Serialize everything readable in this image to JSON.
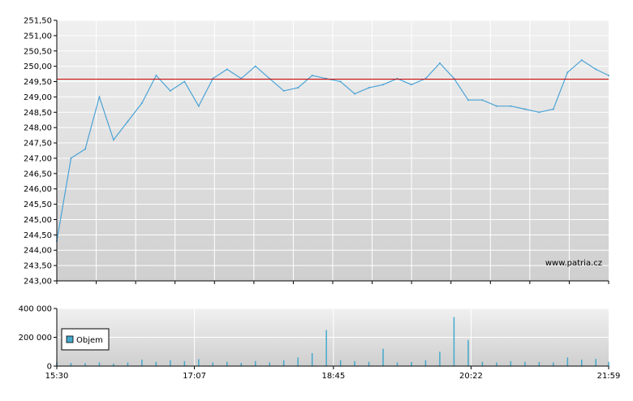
{
  "watermark": "www.patria.cz",
  "colors": {
    "line": "#4aa3d6",
    "reference": "#cc0000",
    "volume": "#45a8cc",
    "grid": "#ffffff",
    "bg_top": "#f0f0f0",
    "bg_bottom": "#cfcfcf"
  },
  "chart_data": [
    {
      "type": "line",
      "title": "",
      "xlabel": "",
      "ylabel": "",
      "ylim": [
        243.0,
        251.5
      ],
      "yticks": [
        "243,00",
        "243,50",
        "244,00",
        "244,50",
        "245,00",
        "245,50",
        "246,00",
        "246,50",
        "247,00",
        "247,50",
        "248,00",
        "248,50",
        "249,00",
        "249,50",
        "250,00",
        "250,50",
        "251,00",
        "251,50"
      ],
      "reference_line": 249.58,
      "grid": true,
      "x": [
        "15:30",
        "15:40",
        "15:50",
        "16:00",
        "16:10",
        "16:20",
        "16:30",
        "16:40",
        "16:50",
        "17:00",
        "17:10",
        "17:20",
        "17:30",
        "17:40",
        "17:50",
        "18:00",
        "18:10",
        "18:20",
        "18:30",
        "18:40",
        "18:50",
        "19:00",
        "19:10",
        "19:20",
        "19:30",
        "19:40",
        "19:50",
        "20:00",
        "20:10",
        "20:20",
        "20:30",
        "20:40",
        "20:50",
        "21:00",
        "21:10",
        "21:20",
        "21:30",
        "21:40",
        "21:50",
        "21:59"
      ],
      "series": [
        {
          "values": [
            244.3,
            247.0,
            247.3,
            249.0,
            247.6,
            248.2,
            248.8,
            249.7,
            249.2,
            249.5,
            248.7,
            249.6,
            249.9,
            249.6,
            250.0,
            249.6,
            249.2,
            249.3,
            249.7,
            249.6,
            249.5,
            249.1,
            249.3,
            249.4,
            249.6,
            249.4,
            249.6,
            250.1,
            249.6,
            248.9,
            248.9,
            248.7,
            248.7,
            248.6,
            248.5,
            248.6,
            249.8,
            250.2,
            249.9,
            249.7
          ]
        }
      ]
    },
    {
      "type": "bar",
      "title": "",
      "ylim": [
        0,
        400000
      ],
      "yticks": [
        "0",
        "200 000",
        "400 000"
      ],
      "legend": [
        "Objem"
      ],
      "legend_position": "left",
      "xticks": [
        "15:30",
        "17:07",
        "18:45",
        "20:22",
        "21:59"
      ],
      "x": [
        "15:30",
        "15:40",
        "15:50",
        "16:00",
        "16:10",
        "16:20",
        "16:30",
        "16:40",
        "16:50",
        "17:00",
        "17:10",
        "17:20",
        "17:30",
        "17:40",
        "17:50",
        "18:00",
        "18:10",
        "18:20",
        "18:30",
        "18:40",
        "18:50",
        "19:00",
        "19:10",
        "19:20",
        "19:30",
        "19:40",
        "19:50",
        "20:00",
        "20:10",
        "20:20",
        "20:30",
        "20:40",
        "20:50",
        "21:00",
        "21:10",
        "21:20",
        "21:30",
        "21:40",
        "21:50",
        "21:59"
      ],
      "series": [
        {
          "name": "Objem",
          "values": [
            28000,
            22000,
            20000,
            26000,
            18000,
            24000,
            45000,
            30000,
            40000,
            35000,
            48000,
            25000,
            30000,
            22000,
            35000,
            25000,
            40000,
            60000,
            90000,
            250000,
            40000,
            35000,
            30000,
            120000,
            25000,
            28000,
            40000,
            100000,
            340000,
            180000,
            30000,
            25000,
            35000,
            30000,
            28000,
            25000,
            60000,
            45000,
            50000,
            30000
          ]
        }
      ]
    }
  ]
}
